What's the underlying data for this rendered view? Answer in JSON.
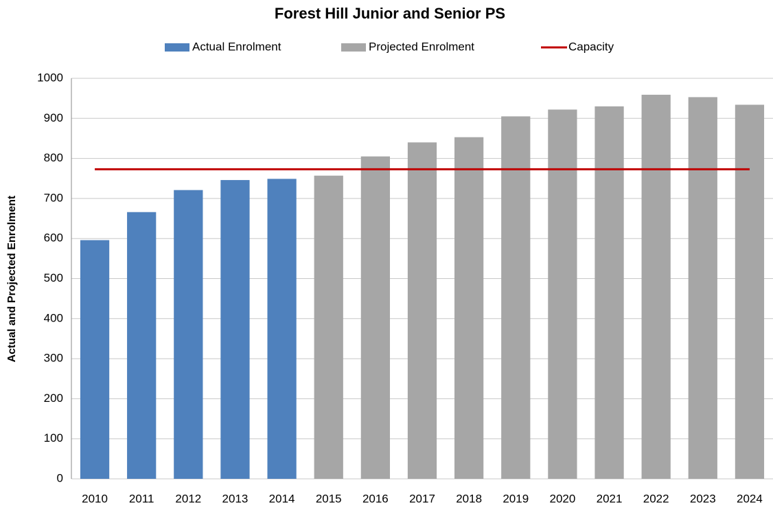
{
  "chart_data": {
    "type": "bar",
    "title": "Forest Hill Junior and Senior PS",
    "y_label": "Actual and Projected Enrolment",
    "categories": [
      "2010",
      "2011",
      "2012",
      "2013",
      "2014",
      "2015",
      "2016",
      "2017",
      "2018",
      "2019",
      "2020",
      "2021",
      "2022",
      "2023",
      "2024"
    ],
    "series": [
      {
        "name": "Actual Enrolment",
        "type": "bar",
        "color": "#4f81bd",
        "values": [
          596,
          666,
          721,
          746,
          749,
          null,
          null,
          null,
          null,
          null,
          null,
          null,
          null,
          null,
          null
        ]
      },
      {
        "name": "Projected Enrolment",
        "type": "bar",
        "color": "#a6a6a6",
        "values": [
          null,
          null,
          null,
          null,
          null,
          757,
          805,
          840,
          853,
          905,
          922,
          930,
          959,
          953,
          934
        ]
      },
      {
        "name": "Capacity",
        "type": "line",
        "color": "#c00000",
        "values": [
          773,
          773,
          773,
          773,
          773,
          773,
          773,
          773,
          773,
          773,
          773,
          773,
          773,
          773,
          773
        ]
      }
    ],
    "ylim": [
      0,
      1000
    ],
    "yticks": [
      0,
      100,
      200,
      300,
      400,
      500,
      600,
      700,
      800,
      900,
      1000
    ],
    "grid": true,
    "legend": "top"
  }
}
